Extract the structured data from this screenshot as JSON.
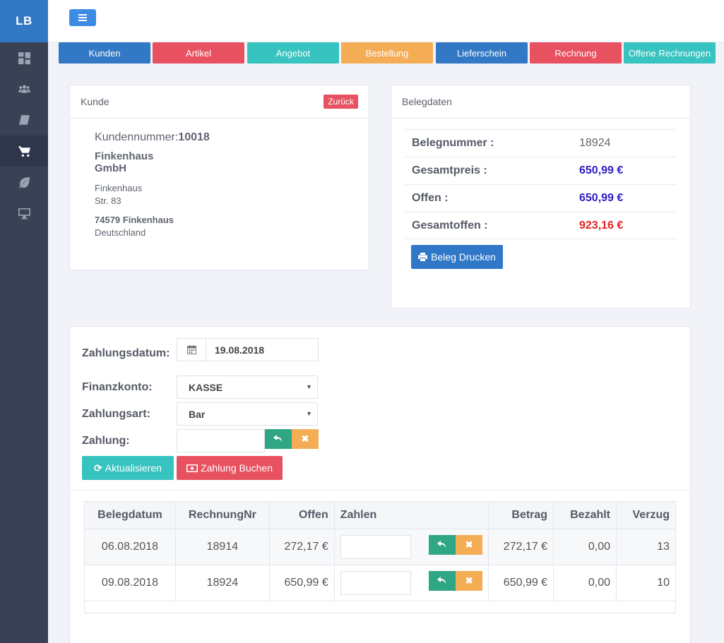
{
  "app": {
    "logo": "LB"
  },
  "sidebar": {
    "items": [
      "dashboard-icon",
      "users-icon",
      "book-icon",
      "cart-icon",
      "leaf-icon",
      "monitor-icon"
    ],
    "active": "cart-icon"
  },
  "modules": [
    {
      "label": "Kunden",
      "color": "#3278c4"
    },
    {
      "label": "Artikel",
      "color": "#e8515f"
    },
    {
      "label": "Angebot",
      "color": "#37c3bf"
    },
    {
      "label": "Bestellung",
      "color": "#f4ad55"
    },
    {
      "label": "Lieferschein",
      "color": "#3278c4"
    },
    {
      "label": "Rechnung",
      "color": "#e8515f"
    },
    {
      "label": "Offene Rechnungen",
      "color": "#37c3bf"
    }
  ],
  "customer": {
    "title": "Kunde",
    "back_label": "Zurück",
    "number_label": "Kundennummer:",
    "number": "10018",
    "name": "Finkenhaus GmbH",
    "street1": "Finkenhaus",
    "street2": "Str. 83",
    "city": "74579 Finkenhaus",
    "country": "Deutschland"
  },
  "beleg": {
    "title": "Belegdaten",
    "rows": [
      {
        "label": "Belegnummer :",
        "value": "18924"
      },
      {
        "label": "Gesamtpreis :",
        "value": "650,99 €"
      },
      {
        "label": "Offen :",
        "value": "650,99 €"
      },
      {
        "label": "Gesamtoffen :",
        "value": "923,16 €"
      }
    ],
    "print_label": "Beleg Drucken"
  },
  "payment": {
    "date_label": "Zahlungsdatum:",
    "date_value": "19.08.2018",
    "konto_label": "Finanzkonto:",
    "konto_value": "KASSE",
    "art_label": "Zahlungsart:",
    "art_value": "Bar",
    "zahlung_label": "Zahlung:",
    "zahlung_value": "",
    "refresh_label": "Aktualisieren",
    "book_label": "Zahlung Buchen"
  },
  "table": {
    "headers": [
      "Belegdatum",
      "RechnungNr",
      "Offen",
      "Zahlen",
      "Betrag",
      "Bezahlt",
      "Verzug"
    ],
    "rows": [
      {
        "date": "06.08.2018",
        "nr": "18914",
        "offen": "272,17 €",
        "zahlen": "",
        "betrag": "272,17 €",
        "bezahlt": "0,00",
        "verzug": "13"
      },
      {
        "date": "09.08.2018",
        "nr": "18924",
        "offen": "650,99 €",
        "zahlen": "",
        "betrag": "650,99 €",
        "bezahlt": "0,00",
        "verzug": "10"
      }
    ]
  }
}
